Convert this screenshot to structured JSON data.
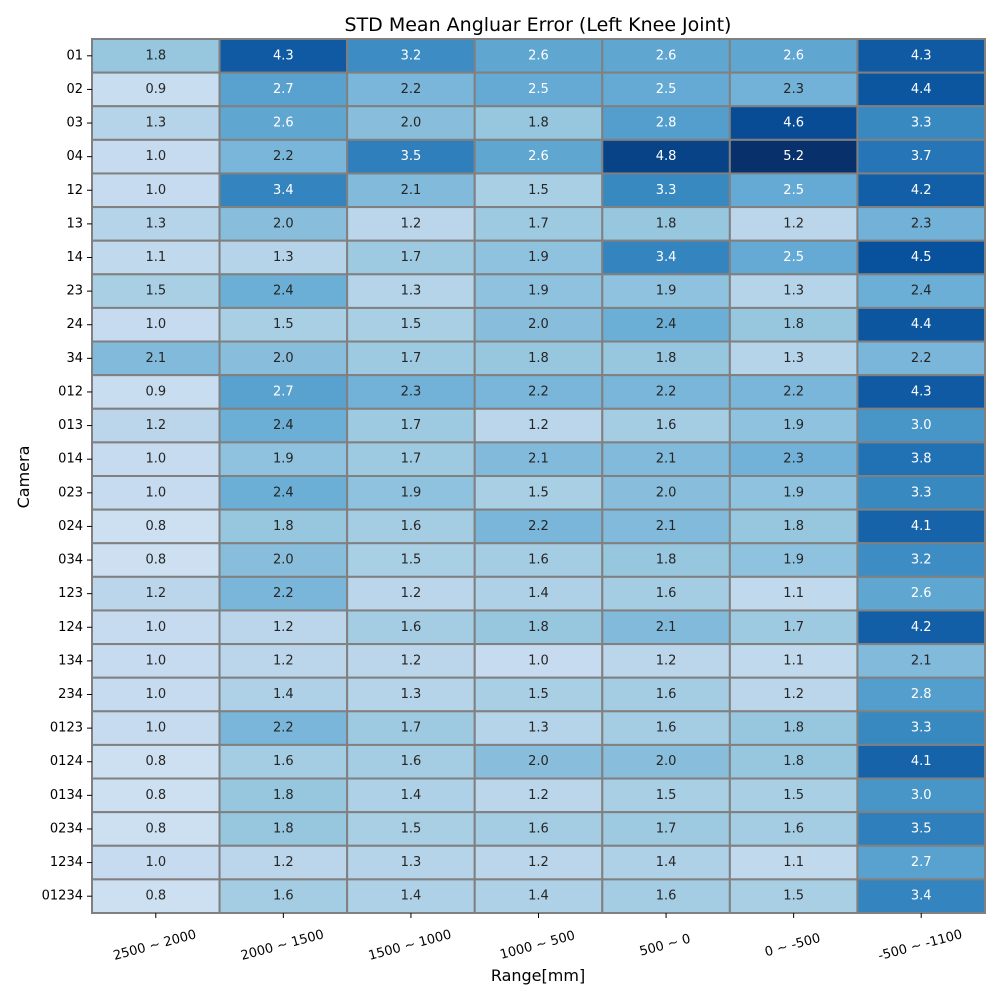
{
  "chart_data": {
    "type": "heatmap",
    "title": "STD Mean Angluar Error (Left Knee Joint)",
    "xlabel": "Range[mm]",
    "ylabel": "Camera",
    "x_categories": [
      "2500 ~ 2000",
      "2000 ~ 1500",
      "1500 ~ 1000",
      "1000 ~ 500",
      "500 ~ 0",
      "0 ~ -500",
      "-500 ~ -1100"
    ],
    "y_categories": [
      "01",
      "02",
      "03",
      "04",
      "12",
      "13",
      "14",
      "23",
      "24",
      "34",
      "012",
      "013",
      "014",
      "023",
      "024",
      "034",
      "123",
      "124",
      "134",
      "234",
      "0123",
      "0124",
      "0134",
      "0234",
      "1234",
      "01234"
    ],
    "values": [
      [
        1.8,
        4.3,
        3.2,
        2.6,
        2.6,
        2.6,
        4.3
      ],
      [
        0.9,
        2.7,
        2.2,
        2.5,
        2.5,
        2.3,
        4.4
      ],
      [
        1.3,
        2.6,
        2.0,
        1.8,
        2.8,
        4.6,
        3.3
      ],
      [
        1.0,
        2.2,
        3.5,
        2.6,
        4.8,
        5.2,
        3.7
      ],
      [
        1.0,
        3.4,
        2.1,
        1.5,
        3.3,
        2.5,
        4.2
      ],
      [
        1.3,
        2.0,
        1.2,
        1.7,
        1.8,
        1.2,
        2.3
      ],
      [
        1.1,
        1.3,
        1.7,
        1.9,
        3.4,
        2.5,
        4.5
      ],
      [
        1.5,
        2.4,
        1.3,
        1.9,
        1.9,
        1.3,
        2.4
      ],
      [
        1.0,
        1.5,
        1.5,
        2.0,
        2.4,
        1.8,
        4.4
      ],
      [
        2.1,
        2.0,
        1.7,
        1.8,
        1.8,
        1.3,
        2.2
      ],
      [
        0.9,
        2.7,
        2.3,
        2.2,
        2.2,
        2.2,
        4.3
      ],
      [
        1.2,
        2.4,
        1.7,
        1.2,
        1.6,
        1.9,
        3.0
      ],
      [
        1.0,
        1.9,
        1.7,
        2.1,
        2.1,
        2.3,
        3.8
      ],
      [
        1.0,
        2.4,
        1.9,
        1.5,
        2.0,
        1.9,
        3.3
      ],
      [
        0.8,
        1.8,
        1.6,
        2.2,
        2.1,
        1.8,
        4.1
      ],
      [
        0.8,
        2.0,
        1.5,
        1.6,
        1.8,
        1.9,
        3.2
      ],
      [
        1.2,
        2.2,
        1.2,
        1.4,
        1.6,
        1.1,
        2.6
      ],
      [
        1.0,
        1.2,
        1.6,
        1.8,
        2.1,
        1.7,
        4.2
      ],
      [
        1.0,
        1.2,
        1.2,
        1.0,
        1.2,
        1.1,
        2.1
      ],
      [
        1.0,
        1.4,
        1.3,
        1.5,
        1.6,
        1.2,
        2.8
      ],
      [
        1.0,
        2.2,
        1.7,
        1.3,
        1.6,
        1.8,
        3.3
      ],
      [
        0.8,
        1.6,
        1.6,
        2.0,
        2.0,
        1.8,
        4.1
      ],
      [
        0.8,
        1.8,
        1.4,
        1.2,
        1.5,
        1.5,
        3.0
      ],
      [
        0.8,
        1.8,
        1.5,
        1.6,
        1.7,
        1.6,
        3.5
      ],
      [
        1.0,
        1.2,
        1.3,
        1.2,
        1.4,
        1.1,
        2.7
      ],
      [
        0.8,
        1.6,
        1.4,
        1.4,
        1.6,
        1.5,
        3.4
      ]
    ],
    "value_format": "one decimal",
    "colormap": "Blues",
    "cell_border_color": "#808080",
    "grid": false,
    "legend": "none"
  }
}
